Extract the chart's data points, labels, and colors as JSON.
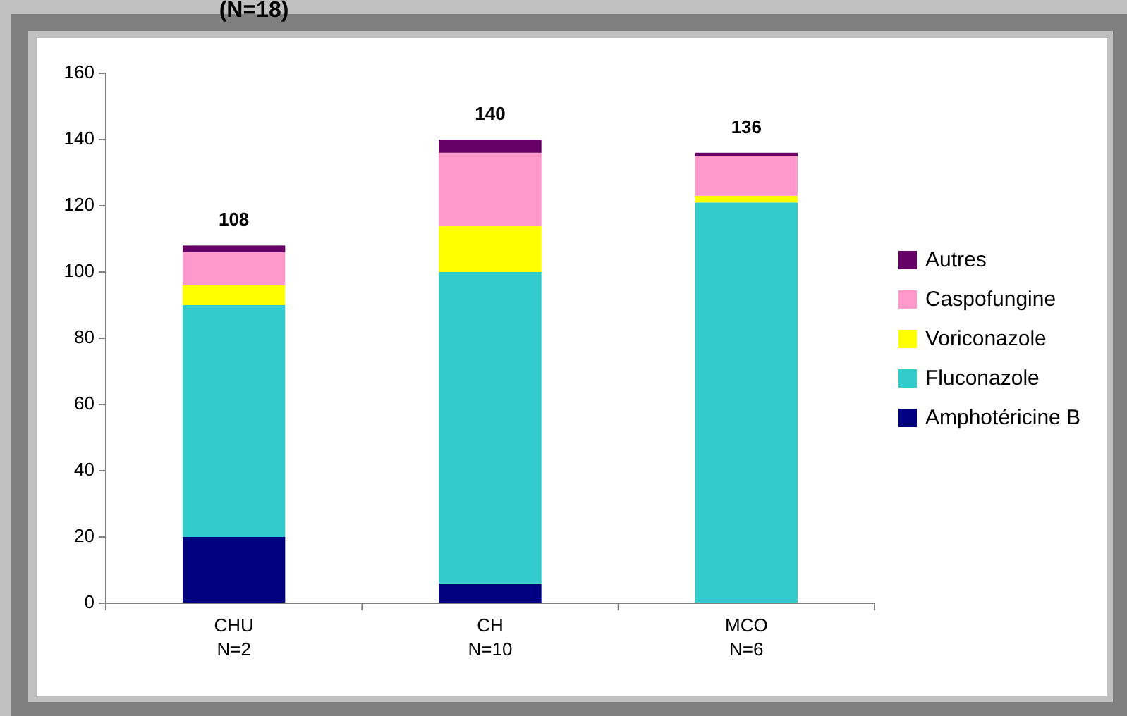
{
  "chart_data": {
    "type": "bar",
    "title": "(N=18)",
    "stacked": true,
    "categories": [
      "CHU\nN=2",
      "CH\nN=10",
      "MCO\nN=6"
    ],
    "series": [
      {
        "name": "Amphotéricine B",
        "color": "#000080",
        "values": [
          20,
          6,
          0
        ]
      },
      {
        "name": "Fluconazole",
        "color": "#33cccc",
        "values": [
          70,
          94,
          121
        ]
      },
      {
        "name": "Voriconazole",
        "color": "#ffff00",
        "values": [
          6,
          14,
          2
        ]
      },
      {
        "name": "Caspofungine",
        "color": "#ff99cc",
        "values": [
          10,
          22,
          12
        ]
      },
      {
        "name": "Autres",
        "color": "#660066",
        "values": [
          2,
          4,
          1
        ]
      }
    ],
    "totals": [
      "108",
      "140",
      "136"
    ],
    "ylim": [
      0,
      160
    ],
    "yticks": [
      0,
      20,
      40,
      60,
      80,
      100,
      120,
      140,
      160
    ],
    "grid": false,
    "legend": "right"
  }
}
